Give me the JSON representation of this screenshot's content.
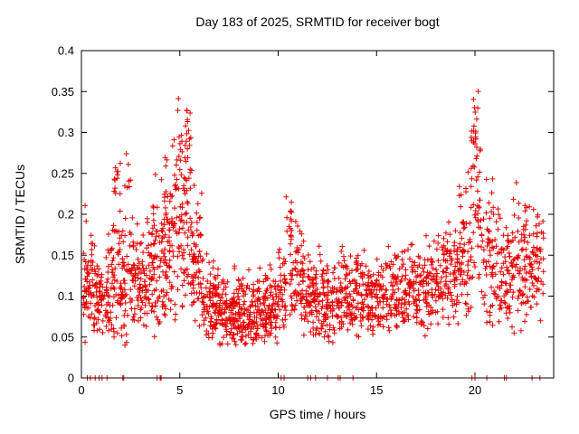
{
  "chart_data": {
    "type": "scatter",
    "title": "Day 183 of 2025, SRMTID for receiver bogt",
    "xlabel": "GPS time / hours",
    "ylabel": "SRMTID / TECUs",
    "xlim": [
      0,
      24
    ],
    "ylim": [
      0,
      0.4
    ],
    "xtick_values": [
      0,
      5,
      10,
      15,
      20
    ],
    "xtick_labels": [
      "0",
      "5",
      "10",
      "15",
      "20"
    ],
    "ytick_values": [
      0,
      0.05,
      0.1,
      0.15,
      0.2,
      0.25,
      0.3,
      0.35,
      0.4
    ],
    "ytick_labels": [
      "0",
      "0.05",
      "0.1",
      "0.15",
      "0.2",
      "0.25",
      "0.3",
      "0.35",
      "0.4"
    ],
    "legend": "none",
    "grid": false,
    "marker": "plus",
    "marker_color": "#e30000",
    "axis_color": "#000000",
    "seed": 183,
    "clusters": [
      [
        0.1,
        0.6,
        60,
        0.11,
        0.035,
        0.04,
        0.215
      ],
      [
        0.6,
        1.2,
        55,
        0.095,
        0.03,
        0.05,
        0.17
      ],
      [
        1.2,
        1.9,
        70,
        0.105,
        0.04,
        0.05,
        0.25
      ],
      [
        1.6,
        2.0,
        12,
        0.235,
        0.02,
        0.2,
        0.265
      ],
      [
        1.9,
        2.6,
        70,
        0.11,
        0.045,
        0.04,
        0.24
      ],
      [
        2.2,
        2.5,
        8,
        0.245,
        0.02,
        0.21,
        0.28
      ],
      [
        2.6,
        3.4,
        80,
        0.115,
        0.04,
        0.05,
        0.22
      ],
      [
        3.4,
        4.2,
        90,
        0.14,
        0.045,
        0.05,
        0.27
      ],
      [
        4.2,
        4.8,
        80,
        0.17,
        0.055,
        0.07,
        0.3
      ],
      [
        4.8,
        5.6,
        90,
        0.2,
        0.06,
        0.08,
        0.355
      ],
      [
        5.2,
        5.5,
        10,
        0.31,
        0.025,
        0.27,
        0.35
      ],
      [
        5.6,
        6.2,
        70,
        0.13,
        0.04,
        0.06,
        0.24
      ],
      [
        6.2,
        7.0,
        90,
        0.09,
        0.025,
        0.045,
        0.16
      ],
      [
        7.0,
        8.0,
        110,
        0.082,
        0.022,
        0.04,
        0.15
      ],
      [
        8.0,
        9.0,
        110,
        0.08,
        0.022,
        0.04,
        0.14
      ],
      [
        9.0,
        10.0,
        110,
        0.083,
        0.025,
        0.04,
        0.15
      ],
      [
        10.0,
        10.4,
        40,
        0.1,
        0.03,
        0.05,
        0.17
      ],
      [
        10.4,
        10.7,
        14,
        0.2,
        0.02,
        0.17,
        0.235
      ],
      [
        10.6,
        11.3,
        70,
        0.12,
        0.035,
        0.06,
        0.2
      ],
      [
        11.3,
        12.2,
        90,
        0.095,
        0.03,
        0.045,
        0.17
      ],
      [
        12.2,
        13.2,
        100,
        0.09,
        0.028,
        0.04,
        0.16
      ],
      [
        13.2,
        14.2,
        100,
        0.095,
        0.03,
        0.05,
        0.17
      ],
      [
        14.2,
        15.2,
        100,
        0.095,
        0.028,
        0.05,
        0.16
      ],
      [
        15.2,
        16.2,
        90,
        0.1,
        0.03,
        0.05,
        0.18
      ],
      [
        16.2,
        17.2,
        90,
        0.105,
        0.03,
        0.05,
        0.17
      ],
      [
        17.2,
        18.2,
        90,
        0.11,
        0.032,
        0.05,
        0.18
      ],
      [
        18.2,
        19.2,
        90,
        0.12,
        0.035,
        0.06,
        0.2
      ],
      [
        19.2,
        19.8,
        60,
        0.15,
        0.05,
        0.07,
        0.28
      ],
      [
        19.8,
        20.3,
        50,
        0.22,
        0.06,
        0.1,
        0.355
      ],
      [
        19.9,
        20.1,
        8,
        0.3,
        0.03,
        0.26,
        0.35
      ],
      [
        20.3,
        21.0,
        60,
        0.14,
        0.045,
        0.06,
        0.25
      ],
      [
        21.0,
        22.0,
        90,
        0.12,
        0.04,
        0.05,
        0.22
      ],
      [
        22.0,
        23.0,
        90,
        0.13,
        0.045,
        0.05,
        0.24
      ],
      [
        23.0,
        23.5,
        40,
        0.13,
        0.04,
        0.06,
        0.21
      ]
    ],
    "zero_marker_xs": [
      0.3,
      0.45,
      0.7,
      0.9,
      1.05,
      1.3,
      2.1,
      2.15,
      3.85,
      4.0,
      4.05,
      10.15,
      10.3,
      11.5,
      11.65,
      11.9,
      12.5,
      13.05,
      13.15,
      13.8,
      19.85,
      20.0,
      20.6,
      21.5,
      21.6,
      22.9,
      23.3
    ]
  }
}
